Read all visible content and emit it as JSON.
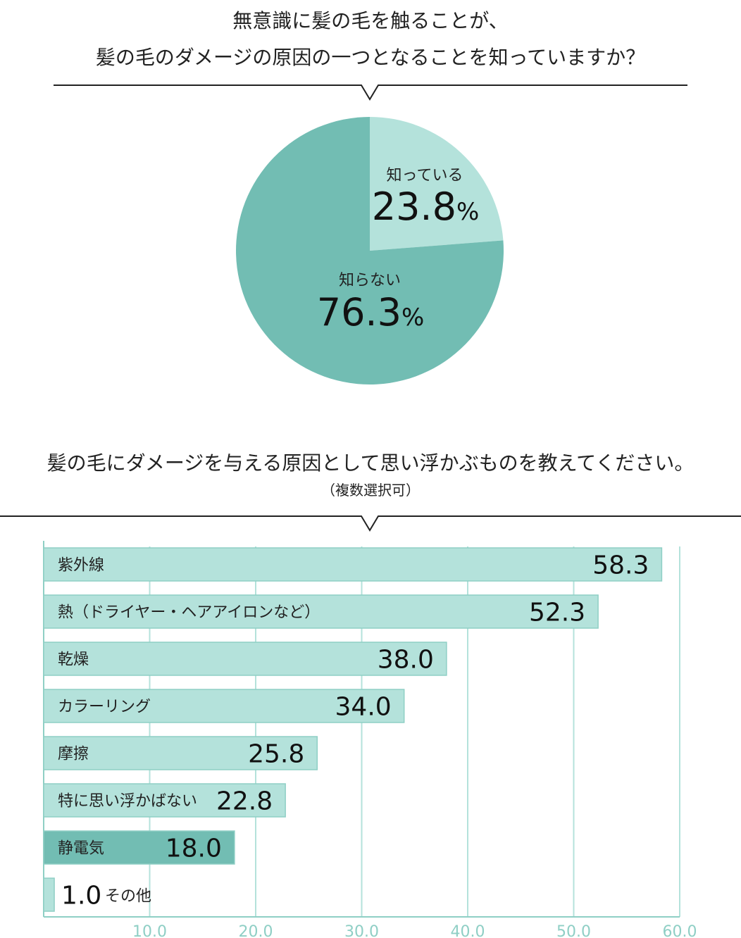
{
  "colors": {
    "pie_light": "#b4e2db",
    "pie_dark": "#72bdb3",
    "bar_light": "#b4e2db",
    "bar_highlight": "#72bdb3",
    "bar_border": "#8fcfc5",
    "grid": "#b4e2db",
    "axis_text": "#8fcfc5",
    "divider": "#222222"
  },
  "chart_data": [
    {
      "type": "pie",
      "title_lines": [
        "無意識に髪の毛を触ることが、",
        "髪の毛のダメージの原因の一つとなることを知っていますか？"
      ],
      "slices": [
        {
          "label": "知っている",
          "value": 23.8,
          "value_text": "23.8",
          "unit": "%",
          "color": "#b4e2db"
        },
        {
          "label": "知らない",
          "value": 76.3,
          "value_text": "76.3",
          "unit": "%",
          "color": "#72bdb3"
        }
      ]
    },
    {
      "type": "bar",
      "orientation": "horizontal",
      "title": "髪の毛にダメージを与える原因として思い浮かぶものを教えてください。",
      "subtitle": "（複数選択可）",
      "xlim": [
        0,
        60
      ],
      "grid": true,
      "ticks": [
        10,
        20,
        30,
        40,
        50,
        60
      ],
      "tick_labels": [
        "10.0",
        "20.0",
        "30.0",
        "40.0",
        "50.0",
        "60.0"
      ],
      "bars": [
        {
          "label": "紫外線",
          "value": 58.3,
          "value_text": "58.3",
          "highlight": false
        },
        {
          "label": "熱（ドライヤー・ヘアアイロンなど）",
          "value": 52.3,
          "value_text": "52.3",
          "highlight": false
        },
        {
          "label": "乾燥",
          "value": 38.0,
          "value_text": "38.0",
          "highlight": false
        },
        {
          "label": "カラーリング",
          "value": 34.0,
          "value_text": "34.0",
          "highlight": false
        },
        {
          "label": "摩擦",
          "value": 25.8,
          "value_text": "25.8",
          "highlight": false
        },
        {
          "label": "特に思い浮かばない",
          "value": 22.8,
          "value_text": "22.8",
          "highlight": false
        },
        {
          "label": "静電気",
          "value": 18.0,
          "value_text": "18.0",
          "highlight": true
        },
        {
          "label": "その他",
          "value": 1.0,
          "value_text": "1.0",
          "highlight": false
        }
      ]
    }
  ]
}
